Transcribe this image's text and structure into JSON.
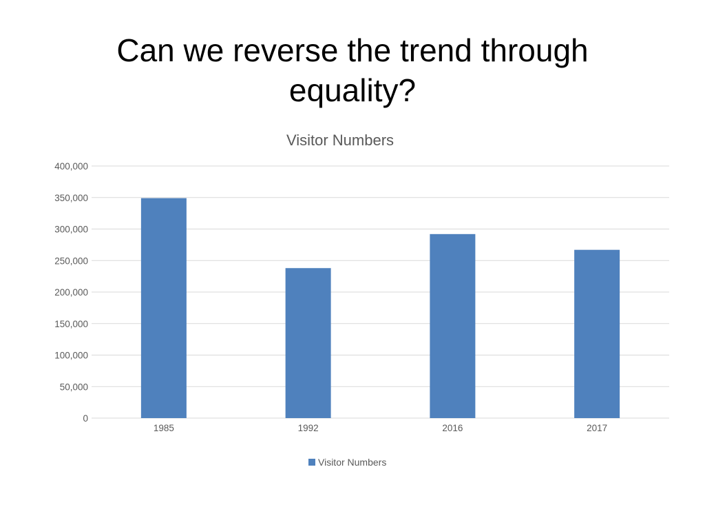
{
  "slide": {
    "title": "Can we reverse the trend through equality?"
  },
  "chart_data": {
    "type": "bar",
    "title": "Visitor Numbers",
    "categories": [
      "1985",
      "1992",
      "2016",
      "2017"
    ],
    "series": [
      {
        "name": "Visitor Numbers",
        "values": [
          349000,
          238000,
          292000,
          267000
        ]
      }
    ],
    "xlabel": "",
    "ylabel": "",
    "ylim": [
      0,
      400000
    ],
    "yticks": [
      "0",
      "50,000",
      "100,000",
      "150,000",
      "200,000",
      "250,000",
      "300,000",
      "350,000",
      "400,000"
    ],
    "yticks_values": [
      0,
      50000,
      100000,
      150000,
      200000,
      250000,
      300000,
      350000,
      400000
    ],
    "grid": true,
    "legend_position": "bottom",
    "colors": {
      "bar": "#4F81BD",
      "grid": "#D9D9D9",
      "axis": "#D9D9D9",
      "text": "#595959"
    }
  }
}
